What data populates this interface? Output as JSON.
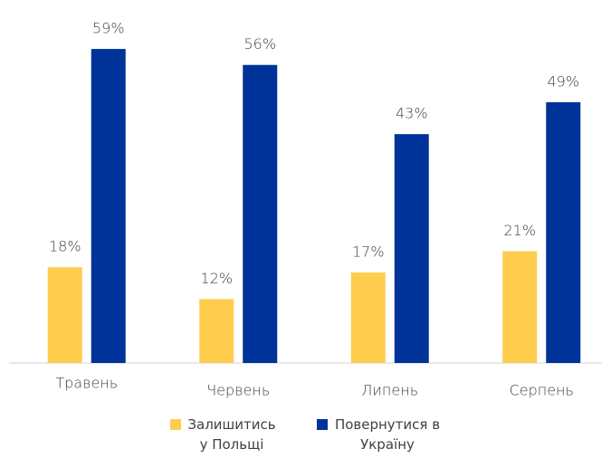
{
  "chart_data": {
    "type": "bar",
    "categories": [
      "Травень",
      "Червень",
      "Липень",
      "Серпень"
    ],
    "series": [
      {
        "name": "Залишитись у Польщі",
        "color": "#ffcc4e",
        "values": [
          18,
          12,
          17,
          21
        ],
        "value_labels": [
          "18%",
          "12%",
          "17%",
          "21%"
        ]
      },
      {
        "name": "Повернутися в Україну",
        "color": "#003399",
        "values": [
          59,
          56,
          43,
          49
        ],
        "value_labels": [
          "59%",
          "56%",
          "43%",
          "49%"
        ]
      }
    ]
  }
}
